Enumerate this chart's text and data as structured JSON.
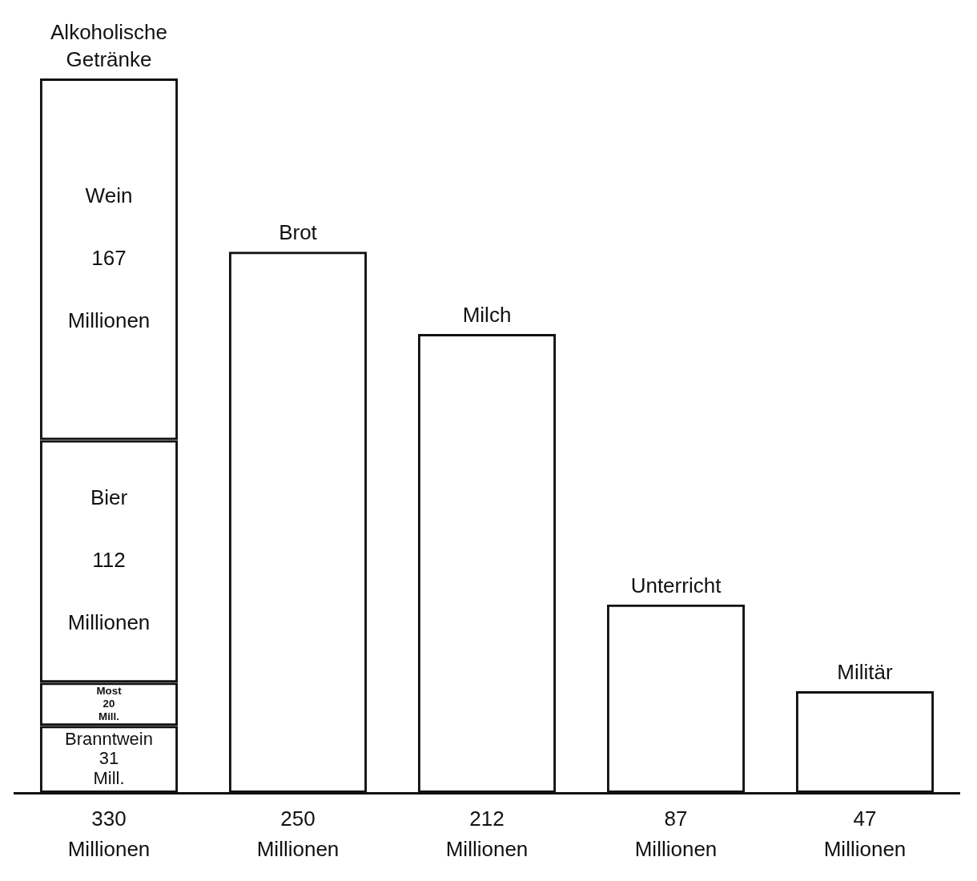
{
  "chart_data": {
    "type": "bar",
    "stacked": true,
    "categories": [
      "Alkoholische Getränke",
      "Brot",
      "Milch",
      "Unterricht",
      "Militär"
    ],
    "series": [
      {
        "name": "Branntwein",
        "color": "#111111",
        "values": [
          31,
          null,
          null,
          null,
          null
        ],
        "value_labels": [
          "31 Mill.",
          null,
          null,
          null,
          null
        ]
      },
      {
        "name": "Most",
        "color": "#111111",
        "values": [
          20,
          null,
          null,
          null,
          null
        ],
        "value_labels": [
          "20 Mill.",
          null,
          null,
          null,
          null
        ]
      },
      {
        "name": "Bier",
        "color": "#111111",
        "values": [
          112,
          null,
          null,
          null,
          null
        ],
        "value_labels": [
          "112 Millionen",
          null,
          null,
          null,
          null
        ]
      },
      {
        "name": "Wein",
        "color": "#111111",
        "values": [
          167,
          null,
          null,
          null,
          null
        ],
        "value_labels": [
          "167 Millionen",
          null,
          null,
          null,
          null
        ]
      },
      {
        "color": "#111111",
        "values": [
          null,
          250,
          212,
          87,
          47
        ]
      }
    ],
    "totals": [
      "330 Millionen",
      "250 Millionen",
      "212 Millionen",
      "87 Millionen",
      "47 Millionen"
    ],
    "grid": false,
    "legend": false,
    "tick_labels": false
  }
}
